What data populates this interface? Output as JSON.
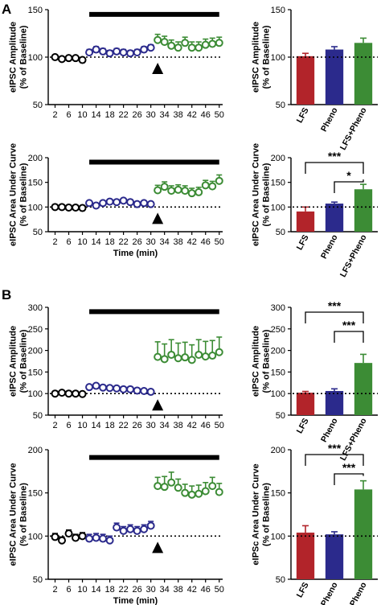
{
  "panel_labels": [
    "A",
    "B"
  ],
  "colors": {
    "black": "#000000",
    "blue": "#2b2a8c",
    "green": "#3c8c35",
    "red": "#b2242a"
  },
  "x_ticks": [
    "2",
    "6",
    "10",
    "14",
    "18",
    "22",
    "26",
    "30",
    "34",
    "38",
    "42",
    "46",
    "50"
  ],
  "xlabel": "Time (min)",
  "chart_data": [
    {
      "id": "A-amp-time",
      "type": "scatter",
      "ylabel": "eIPSC Amplitude (% of Baseline)",
      "ylim": [
        50,
        150
      ],
      "yticks": [
        50,
        100,
        150
      ],
      "xlim": [
        0,
        51
      ],
      "baseline": 100,
      "bar_x": [
        12,
        50
      ],
      "bar_y": 145,
      "arrow_x": 32,
      "series": [
        {
          "color": "black",
          "x": [
            2,
            4,
            6,
            8,
            10
          ],
          "y": [
            100,
            98,
            99,
            99,
            97
          ],
          "err": [
            2,
            2,
            2,
            2,
            2
          ]
        },
        {
          "color": "blue",
          "x": [
            12,
            14,
            16,
            18,
            20,
            22,
            24,
            26,
            28,
            30
          ],
          "y": [
            105,
            108,
            106,
            104,
            106,
            105,
            104,
            105,
            108,
            110
          ],
          "err": [
            3,
            3,
            3,
            3,
            3,
            3,
            3,
            3,
            3,
            3
          ]
        },
        {
          "color": "green",
          "x": [
            32,
            34,
            36,
            38,
            40,
            42,
            44,
            46,
            48,
            50
          ],
          "y": [
            118,
            116,
            112,
            110,
            115,
            110,
            110,
            113,
            114,
            115
          ],
          "err": [
            6,
            6,
            6,
            6,
            6,
            6,
            6,
            6,
            6,
            6
          ]
        }
      ]
    },
    {
      "id": "A-amp-bar",
      "type": "bar",
      "ylabel": "eIPSC Amplitude (% of Baseline)",
      "ylim": [
        50,
        150
      ],
      "yticks": [
        50,
        100,
        150
      ],
      "categories": [
        "LFS",
        "Pheno",
        "LFS+Pheno"
      ],
      "values": [
        101,
        108,
        115
      ],
      "errors": [
        3,
        3,
        5
      ],
      "bar_colors": [
        "red",
        "blue",
        "green"
      ],
      "baseline": 100
    },
    {
      "id": "A-auc-time",
      "type": "scatter",
      "ylabel": "eIPSC Area Under Curve (% of Baseline)",
      "ylim": [
        50,
        200
      ],
      "yticks": [
        50,
        100,
        150,
        200
      ],
      "xlim": [
        0,
        51
      ],
      "baseline": 100,
      "bar_x": [
        12,
        50
      ],
      "bar_y": 191,
      "arrow_x": 32,
      "series": [
        {
          "color": "black",
          "x": [
            2,
            4,
            6,
            8,
            10
          ],
          "y": [
            100,
            100,
            99,
            99,
            98
          ],
          "err": [
            2,
            2,
            2,
            2,
            2
          ]
        },
        {
          "color": "blue",
          "x": [
            12,
            14,
            16,
            18,
            20,
            22,
            24,
            26,
            28,
            30
          ],
          "y": [
            108,
            103,
            108,
            111,
            110,
            113,
            110,
            106,
            108,
            106
          ],
          "err": [
            4,
            4,
            4,
            4,
            4,
            4,
            4,
            4,
            4,
            4
          ]
        },
        {
          "color": "green",
          "x": [
            32,
            34,
            36,
            38,
            40,
            42,
            44,
            46,
            48,
            50
          ],
          "y": [
            134,
            141,
            133,
            135,
            133,
            128,
            130,
            144,
            142,
            153
          ],
          "err": [
            10,
            10,
            10,
            10,
            10,
            10,
            10,
            10,
            10,
            12
          ]
        }
      ]
    },
    {
      "id": "A-auc-bar",
      "type": "bar",
      "ylabel": "eIPSC Area Under Curve (% of Baseline)",
      "ylim": [
        50,
        200
      ],
      "yticks": [
        50,
        100,
        150,
        200
      ],
      "categories": [
        "LFS",
        "Pheno",
        "LFS+Pheno"
      ],
      "values": [
        91,
        107,
        136
      ],
      "errors": [
        9,
        3,
        10
      ],
      "bar_colors": [
        "red",
        "blue",
        "green"
      ],
      "baseline": 100,
      "significance": [
        {
          "from": 0,
          "to": 2,
          "label": "***"
        },
        {
          "from": 1,
          "to": 2,
          "label": "*"
        }
      ]
    },
    {
      "id": "B-amp-time",
      "type": "scatter",
      "ylabel": "eIPSC Amplitude (% of Baseline)",
      "ylim": [
        50,
        300
      ],
      "yticks": [
        50,
        100,
        150,
        200,
        250,
        300
      ],
      "xlim": [
        0,
        51
      ],
      "baseline": 100,
      "bar_x": [
        12,
        50
      ],
      "bar_y": 290,
      "arrow_x": 32,
      "series": [
        {
          "color": "black",
          "x": [
            2,
            4,
            6,
            8,
            10
          ],
          "y": [
            100,
            102,
            100,
            100,
            99
          ],
          "err": [
            3,
            3,
            3,
            3,
            3
          ]
        },
        {
          "color": "blue",
          "x": [
            12,
            14,
            16,
            18,
            20,
            22,
            24,
            26,
            28,
            30
          ],
          "y": [
            115,
            118,
            114,
            113,
            112,
            110,
            110,
            107,
            106,
            104
          ],
          "err": [
            5,
            5,
            5,
            5,
            5,
            5,
            5,
            5,
            5,
            5
          ]
        },
        {
          "color": "green",
          "x": [
            32,
            34,
            36,
            38,
            40,
            42,
            44,
            46,
            48,
            50
          ],
          "y": [
            185,
            180,
            190,
            182,
            184,
            178,
            190,
            186,
            188,
            196
          ],
          "err": [
            35,
            35,
            35,
            35,
            35,
            35,
            35,
            35,
            35,
            35
          ]
        }
      ]
    },
    {
      "id": "B-amp-bar",
      "type": "bar",
      "ylabel": "eIPSC Amplitude (% of Baseline)",
      "ylim": [
        50,
        300
      ],
      "yticks": [
        50,
        100,
        150,
        200,
        250,
        300
      ],
      "categories": [
        "LFS",
        "Pheno",
        "LFS+Pheno"
      ],
      "values": [
        102,
        106,
        171
      ],
      "errors": [
        3,
        5,
        20
      ],
      "bar_colors": [
        "red",
        "blue",
        "green"
      ],
      "baseline": 100,
      "significance": [
        {
          "from": 0,
          "to": 2,
          "label": "***"
        },
        {
          "from": 1,
          "to": 2,
          "label": "***"
        }
      ]
    },
    {
      "id": "B-auc-time",
      "type": "scatter",
      "ylabel": "eIPSC Area Under Curve (% of Baseline)",
      "ylim": [
        50,
        200
      ],
      "yticks": [
        50,
        100,
        150,
        200
      ],
      "xlim": [
        0,
        51
      ],
      "baseline": 100,
      "bar_x": [
        12,
        50
      ],
      "bar_y": 191,
      "arrow_x": 32,
      "series": [
        {
          "color": "black",
          "x": [
            2,
            4,
            6,
            8,
            10
          ],
          "y": [
            99,
            95,
            103,
            98,
            100
          ],
          "err": [
            4,
            4,
            4,
            4,
            4
          ]
        },
        {
          "color": "blue",
          "x": [
            12,
            14,
            16,
            18,
            20,
            22,
            24,
            26,
            28,
            30
          ],
          "y": [
            97,
            98,
            97,
            95,
            110,
            106,
            108,
            106,
            108,
            112
          ],
          "err": [
            5,
            5,
            5,
            5,
            5,
            5,
            5,
            5,
            5,
            5
          ]
        },
        {
          "color": "green",
          "x": [
            32,
            34,
            36,
            38,
            40,
            42,
            44,
            46,
            48,
            50
          ],
          "y": [
            158,
            157,
            162,
            156,
            150,
            148,
            149,
            152,
            158,
            151
          ],
          "err": [
            10,
            12,
            12,
            10,
            10,
            10,
            10,
            10,
            10,
            10
          ]
        }
      ]
    },
    {
      "id": "B-auc-bar",
      "type": "bar",
      "ylabel": "eIPSc Area Under Curve (% of Baseline)",
      "ylim": [
        50,
        200
      ],
      "yticks": [
        50,
        100,
        150,
        200
      ],
      "categories": [
        "LFS",
        "Pheno",
        "LFS+Pheno"
      ],
      "values": [
        104,
        102,
        154
      ],
      "errors": [
        8,
        3,
        10
      ],
      "bar_colors": [
        "red",
        "blue",
        "green"
      ],
      "baseline": 100,
      "significance": [
        {
          "from": 0,
          "to": 2,
          "label": "***"
        },
        {
          "from": 1,
          "to": 2,
          "label": "***"
        }
      ]
    }
  ]
}
